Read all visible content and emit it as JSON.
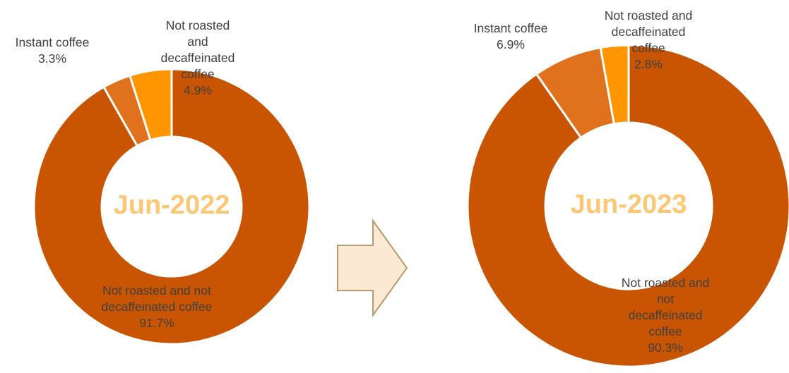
{
  "chart_data": [
    {
      "type": "pie",
      "title": "Jun-2022",
      "categories": [
        "Not roasted and not decaffeinated coffee",
        "Instant coffee",
        "Not roasted and decaffeinated coffee"
      ],
      "values": [
        91.7,
        3.3,
        4.9
      ],
      "value_labels": [
        "91.7%",
        "3.3%",
        "4.9%"
      ],
      "label_lines": [
        [
          "Not roasted and not",
          "decaffeinated coffee",
          "91.7%"
        ],
        [
          "Instant coffee",
          "3.3%"
        ],
        [
          "Not roasted",
          "and",
          "decaffeinated",
          "coffee",
          "4.9%"
        ]
      ],
      "colors": [
        "#c95401",
        "#e0721e",
        "#ff9500"
      ],
      "hole": "donut"
    },
    {
      "type": "pie",
      "title": "Jun-2023",
      "categories": [
        "Not roasted and not decaffeinated coffee",
        "Instant coffee",
        "Not roasted and decaffeinated coffee"
      ],
      "values": [
        90.3,
        6.9,
        2.8
      ],
      "value_labels": [
        "90.3%",
        "6.9%",
        "2.8%"
      ],
      "label_lines": [
        [
          "Not roasted and",
          "not",
          "decaffeinated",
          "coffee",
          "90.3%"
        ],
        [
          "Instant coffee",
          "6.9%"
        ],
        [
          "Not roasted and",
          "decaffeinated",
          "coffee",
          "2.8%"
        ]
      ],
      "colors": [
        "#c95401",
        "#e0721e",
        "#ff9500"
      ],
      "hole": "donut"
    }
  ],
  "arrow": {
    "fill": "#fce9d3",
    "stroke": "#b89a6c",
    "icon": "right-arrow-icon"
  }
}
